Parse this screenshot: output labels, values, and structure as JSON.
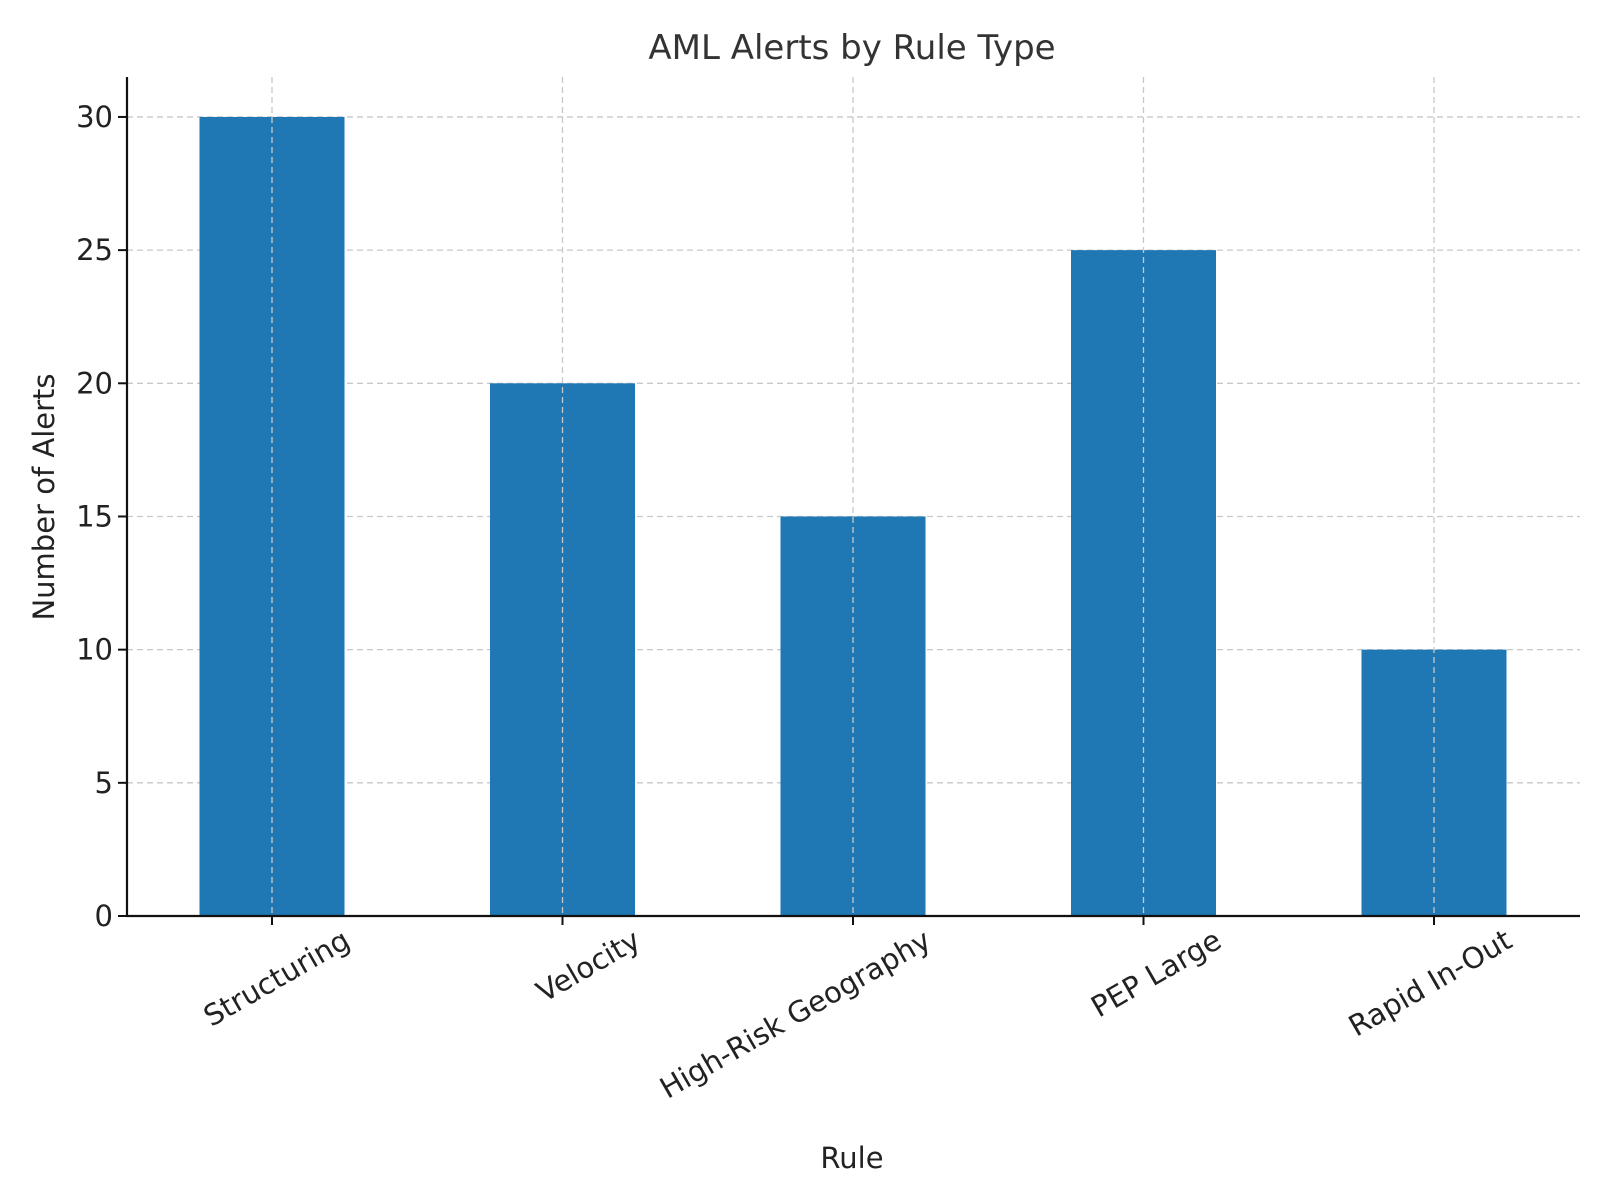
{
  "chart_data": {
    "type": "bar",
    "title": "AML Alerts by Rule Type",
    "xlabel": "Rule",
    "ylabel": "Number of Alerts",
    "categories": [
      "Structuring",
      "Velocity",
      "High-Risk Geography",
      "PEP Large",
      "Rapid In-Out"
    ],
    "values": [
      30,
      20,
      15,
      25,
      10
    ],
    "ylim": [
      0,
      31.5
    ],
    "yticks": [
      0,
      5,
      10,
      15,
      20,
      25,
      30
    ],
    "grid": true,
    "bar_color": "#1f77b4",
    "legend": "none"
  }
}
